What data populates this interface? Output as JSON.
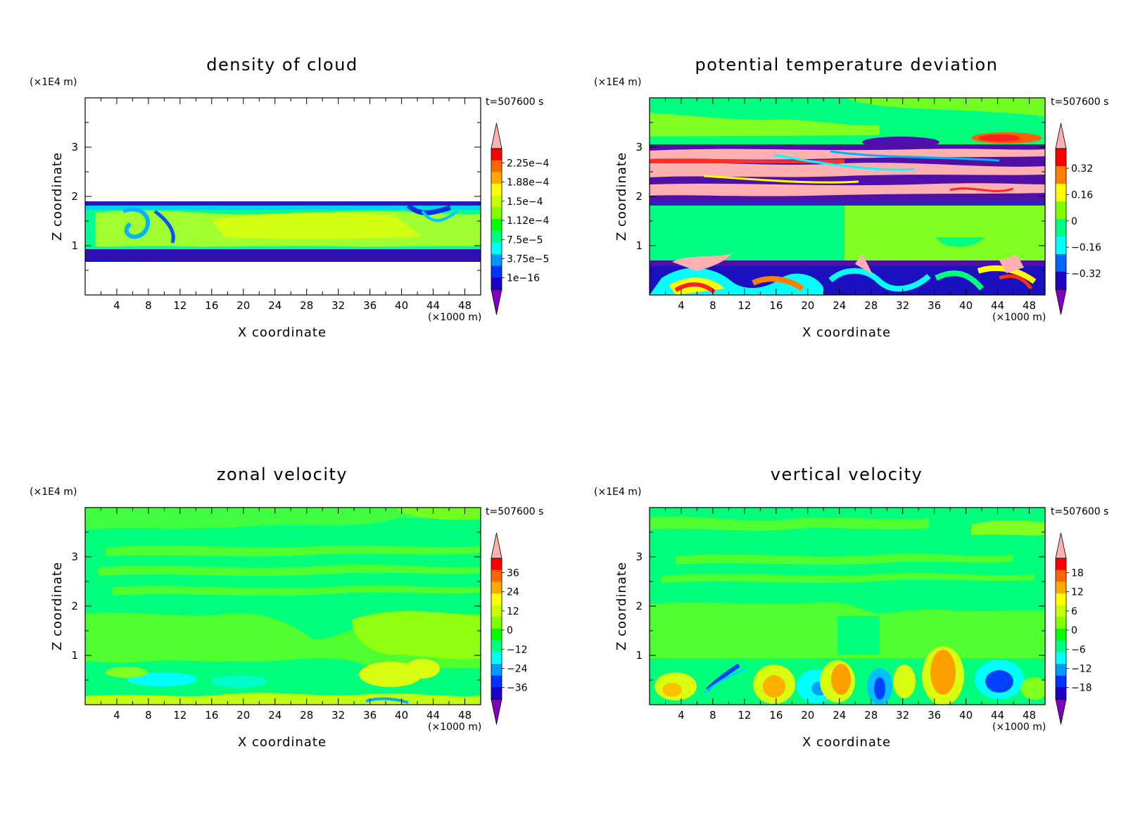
{
  "figure": {
    "panels": [
      {
        "title": "density of cloud",
        "time_label": "t=507600 s",
        "y_unit_label": "(×1E4 m)",
        "x_unit_label": "(×1000 m)",
        "xlabel": "X coordinate",
        "ylabel": "Z coordinate",
        "colorbar_labels": [
          "2.25e−4",
          "1.88e−4",
          "1.5e−4",
          "1.12e−4",
          "7.5e−5",
          "3.75e−5",
          "1e−16"
        ]
      },
      {
        "title": "potential temperature deviation",
        "time_label": "t=507600 s",
        "y_unit_label": "(×1E4 m)",
        "x_unit_label": "(×1000 m)",
        "xlabel": "X coordinate",
        "ylabel": "Z coordinate",
        "colorbar_labels": [
          "0.32",
          "0.16",
          "0",
          "−0.16",
          "−0.32"
        ]
      },
      {
        "title": "zonal velocity",
        "time_label": "t=507600 s",
        "y_unit_label": "(×1E4 m)",
        "x_unit_label": "(×1000 m)",
        "xlabel": "X coordinate",
        "ylabel": "Z coordinate",
        "colorbar_labels": [
          "36",
          "24",
          "12",
          "0",
          "−12",
          "−24",
          "−36"
        ]
      },
      {
        "title": "vertical velocity",
        "time_label": "t=507600 s",
        "y_unit_label": "(×1E4 m)",
        "x_unit_label": "(×1000 m)",
        "xlabel": "X coordinate",
        "ylabel": "Z coordinate",
        "colorbar_labels": [
          "18",
          "12",
          "6",
          "0",
          "−6",
          "−12",
          "−18"
        ]
      }
    ]
  },
  "chart_data": [
    {
      "type": "heatmap",
      "title": "density of cloud",
      "xlabel": "X coordinate",
      "ylabel": "Z coordinate",
      "x_unit": "×1000 m",
      "y_unit": "×1E4 m",
      "time": "t=507600 s",
      "xlim": [
        0,
        50
      ],
      "ylim": [
        0,
        4
      ],
      "x_ticks": [
        4,
        8,
        12,
        16,
        20,
        24,
        28,
        32,
        36,
        40,
        44,
        48
      ],
      "y_ticks": [
        1,
        2,
        3
      ],
      "colorbar_levels": [
        0.000225,
        0.000188,
        0.00015,
        0.000112,
        7.5e-05,
        3.75e-05,
        1e-16
      ],
      "colorbar_colors": [
        "#ff0000",
        "#ff6600",
        "#ffaa00",
        "#ffff00",
        "#c8ff00",
        "#80ff00",
        "#00ff00",
        "#00ff80",
        "#00ffff",
        "#0099ff",
        "#0033ff",
        "#1a00c8",
        "#6600aa"
      ],
      "cloud_layer_z": [
        0.75,
        1.85
      ]
    },
    {
      "type": "heatmap",
      "title": "potential temperature deviation",
      "xlabel": "X coordinate",
      "ylabel": "Z coordinate",
      "x_unit": "×1000 m",
      "y_unit": "×1E4 m",
      "time": "t=507600 s",
      "xlim": [
        0,
        50
      ],
      "ylim": [
        0,
        4
      ],
      "x_ticks": [
        4,
        8,
        12,
        16,
        20,
        24,
        28,
        32,
        36,
        40,
        44,
        48
      ],
      "y_ticks": [
        1,
        2,
        3
      ],
      "colorbar_levels": [
        0.32,
        0.16,
        0,
        -0.16,
        -0.32
      ]
    },
    {
      "type": "heatmap",
      "title": "zonal velocity",
      "xlabel": "X coordinate",
      "ylabel": "Z coordinate",
      "x_unit": "×1000 m",
      "y_unit": "×1E4 m",
      "time": "t=507600 s",
      "xlim": [
        0,
        50
      ],
      "ylim": [
        0,
        4
      ],
      "x_ticks": [
        4,
        8,
        12,
        16,
        20,
        24,
        28,
        32,
        36,
        40,
        44,
        48
      ],
      "y_ticks": [
        1,
        2,
        3
      ],
      "colorbar_levels": [
        36,
        24,
        12,
        0,
        -12,
        -24,
        -36
      ]
    },
    {
      "type": "heatmap",
      "title": "vertical velocity",
      "xlabel": "X coordinate",
      "ylabel": "Z coordinate",
      "x_unit": "×1000 m",
      "y_unit": "×1E4 m",
      "time": "t=507600 s",
      "xlim": [
        0,
        50
      ],
      "ylim": [
        0,
        4
      ],
      "x_ticks": [
        4,
        8,
        12,
        16,
        20,
        24,
        28,
        32,
        36,
        40,
        44,
        48
      ],
      "y_ticks": [
        1,
        2,
        3
      ],
      "colorbar_levels": [
        18,
        12,
        6,
        0,
        -6,
        -12,
        -18
      ]
    }
  ]
}
